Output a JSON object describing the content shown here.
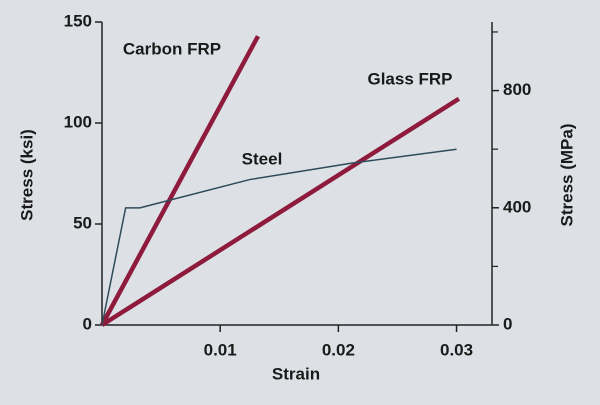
{
  "chart_data": {
    "type": "line",
    "x_label": "Strain",
    "y_label": "Stress (ksi)",
    "y2_label": "Stress (MPa)",
    "xlim": [
      0,
      0.033
    ],
    "xticks": [
      0.01,
      0.02,
      0.03
    ],
    "ylim": [
      0,
      150
    ],
    "yticks": [
      0,
      50,
      100,
      150
    ],
    "y2lim": [
      0,
      1034
    ],
    "y2ticks": [
      0,
      400,
      800
    ],
    "y2minorticks": [
      200,
      600,
      1000
    ],
    "series": [
      {
        "name": "Carbon FRP",
        "color": "#8e1b3c",
        "width": 4.5,
        "x": [
          0,
          0.0132
        ],
        "values": [
          0,
          143
        ]
      },
      {
        "name": "Glass FRP",
        "color": "#8e1b3c",
        "width": 4.5,
        "x": [
          0,
          0.0302
        ],
        "values": [
          0,
          112
        ]
      },
      {
        "name": "Steel",
        "color": "#2e4b5a",
        "width": 1.5,
        "x": [
          0,
          0.002,
          0.0032,
          0.0125,
          0.021,
          0.03
        ],
        "values": [
          0,
          58,
          58,
          72,
          80,
          87
        ]
      }
    ]
  }
}
